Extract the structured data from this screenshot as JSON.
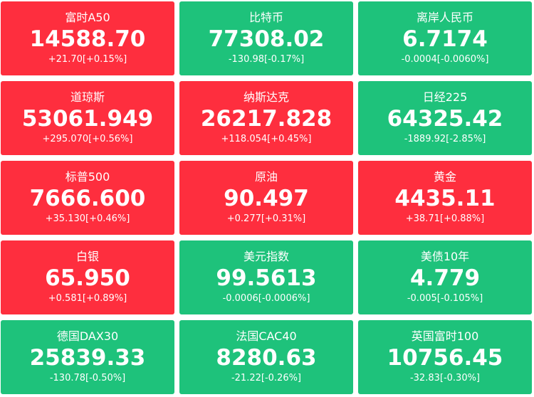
{
  "tiles": [
    {
      "name": "富时A50",
      "price": "14588.70",
      "change": "+21.70[+0.15%]",
      "color": "#fe2e3e"
    },
    {
      "name": "比特币",
      "price": "77308.02",
      "change": "-130.98[-0.17%]",
      "color": "#1ec27b"
    },
    {
      "name": "离岸人民币",
      "price": "6.7174",
      "change": "-0.0004[-0.0060%]",
      "color": "#1ec27b"
    },
    {
      "name": "道琼斯",
      "price": "53061.949",
      "change": "+295.070[+0.56%]",
      "color": "#fe2e3e"
    },
    {
      "name": "纳斯达克",
      "price": "26217.828",
      "change": "+118.054[+0.45%]",
      "color": "#fe2e3e"
    },
    {
      "name": "日经225",
      "price": "64325.42",
      "change": "-1889.92[-2.85%]",
      "color": "#1ec27b"
    },
    {
      "name": "标普500",
      "price": "7666.600",
      "change": "+35.130[+0.46%]",
      "color": "#fe2e3e"
    },
    {
      "name": "原油",
      "price": "90.497",
      "change": "+0.277[+0.31%]",
      "color": "#fe2e3e"
    },
    {
      "name": "黄金",
      "price": "4435.11",
      "change": "+38.71[+0.88%]",
      "color": "#fe2e3e"
    },
    {
      "name": "白银",
      "price": "65.950",
      "change": "+0.581[+0.89%]",
      "color": "#fe2e3e"
    },
    {
      "name": "美元指数",
      "price": "99.5613",
      "change": "-0.0006[-0.0006%]",
      "color": "#1ec27b"
    },
    {
      "name": "美债10年",
      "price": "4.779",
      "change": "-0.005[-0.105%]",
      "color": "#1ec27b"
    },
    {
      "name": "德国DAX30",
      "price": "25839.33",
      "change": "-130.78[-0.50%]",
      "color": "#1ec27b"
    },
    {
      "name": "法国CAC40",
      "price": "8280.63",
      "change": "-21.22[-0.26%]",
      "color": "#1ec27b"
    },
    {
      "name": "英国富时100",
      "price": "10756.45",
      "change": "-32.83[-0.30%]",
      "color": "#1ec27b"
    }
  ]
}
